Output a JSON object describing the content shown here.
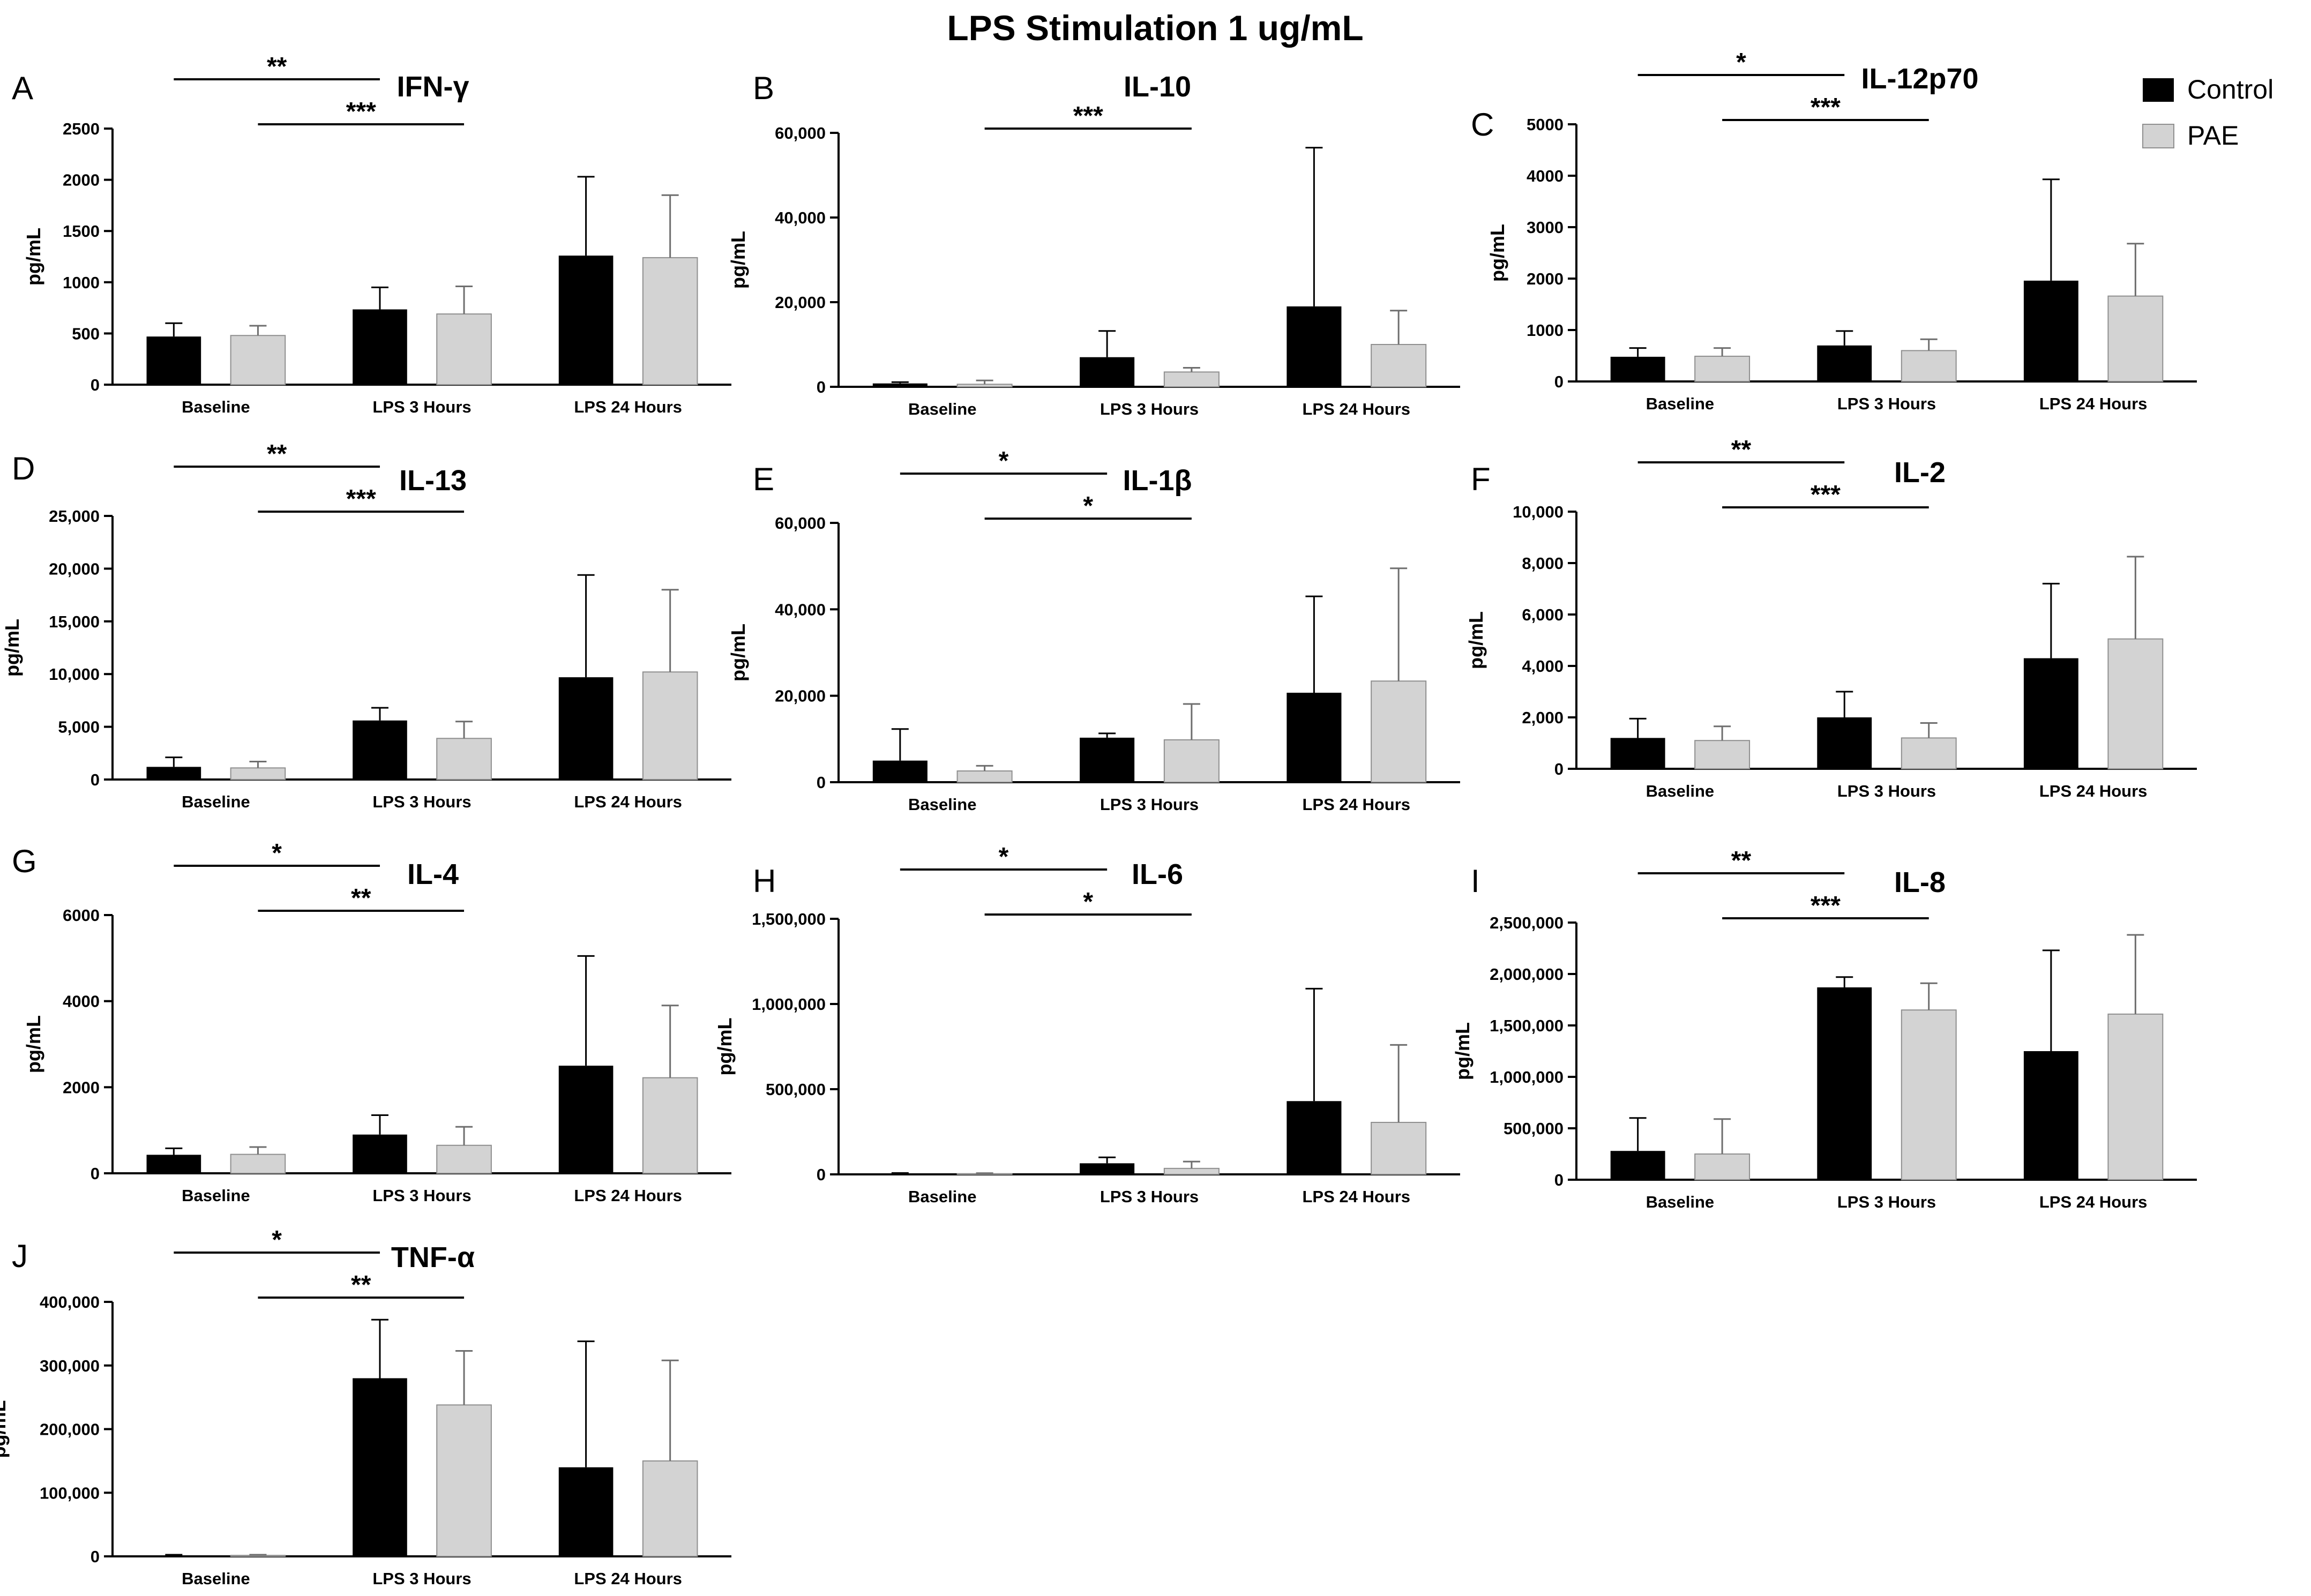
{
  "figure_title": "LPS Stimulation 1 ug/mL",
  "colors": {
    "control": "#000000",
    "pae": "#d3d3d3",
    "axis": "#000000",
    "pae_edge": "#8f8f8f"
  },
  "legend": {
    "placement": "top-right",
    "entries": [
      "Control",
      "PAE"
    ]
  },
  "chart_data": [
    {
      "panel": "A",
      "type": "bar",
      "title": "IFN-γ",
      "ylabel": "pg/mL",
      "categories": [
        "Baseline",
        "LPS 3 Hours",
        "LPS 24 Hours"
      ],
      "ylim": [
        0,
        2500
      ],
      "yticks": [
        0,
        500,
        1000,
        1500,
        2000,
        2500
      ],
      "ytick_labels": [
        "0",
        "500",
        "1000",
        "1500",
        "2000",
        "2500"
      ],
      "series": [
        {
          "name": "Control",
          "values": [
            470,
            735,
            1260
          ],
          "errors": [
            130,
            215,
            770
          ]
        },
        {
          "name": "PAE",
          "values": [
            480,
            690,
            1240
          ],
          "errors": [
            95,
            270,
            610
          ]
        }
      ],
      "significance": [
        {
          "label": "**",
          "from": 0,
          "to": 2,
          "level": 1
        },
        {
          "label": "***",
          "from": 1,
          "to": 3,
          "level": 0
        }
      ]
    },
    {
      "panel": "B",
      "type": "bar",
      "title": "IL-10",
      "ylabel": "pg/mL",
      "categories": [
        "Baseline",
        "LPS 3 Hours",
        "LPS 24 Hours"
      ],
      "ylim": [
        0,
        60000
      ],
      "yticks": [
        0,
        20000,
        40000,
        60000
      ],
      "ytick_labels": [
        "0",
        "20,000",
        "40,000",
        "60,000"
      ],
      "series": [
        {
          "name": "Control",
          "values": [
            800,
            7000,
            19000
          ],
          "errors": [
            300,
            6200,
            37500
          ]
        },
        {
          "name": "PAE",
          "values": [
            600,
            3500,
            10000
          ],
          "errors": [
            900,
            1000,
            8000
          ]
        }
      ],
      "significance": [
        {
          "label": "***",
          "from": 1,
          "to": 3,
          "level": 0
        }
      ]
    },
    {
      "panel": "C",
      "type": "bar",
      "title": "IL-12p70",
      "ylabel": "pg/mL",
      "categories": [
        "Baseline",
        "LPS 3 Hours",
        "LPS 24 Hours"
      ],
      "ylim": [
        0,
        5000
      ],
      "yticks": [
        0,
        1000,
        2000,
        3000,
        4000,
        5000
      ],
      "ytick_labels": [
        "0",
        "1000",
        "2000",
        "3000",
        "4000",
        "5000"
      ],
      "series": [
        {
          "name": "Control",
          "values": [
            480,
            700,
            1960
          ],
          "errors": [
            170,
            280,
            1970
          ]
        },
        {
          "name": "PAE",
          "values": [
            490,
            600,
            1660
          ],
          "errors": [
            160,
            220,
            1020
          ]
        }
      ],
      "significance": [
        {
          "label": "*",
          "from": 0,
          "to": 2,
          "level": 1
        },
        {
          "label": "***",
          "from": 1,
          "to": 3,
          "level": 0
        }
      ]
    },
    {
      "panel": "D",
      "type": "bar",
      "title": "IL-13",
      "ylabel": "pg/mL",
      "categories": [
        "Baseline",
        "LPS 3 Hours",
        "LPS 24 Hours"
      ],
      "ylim": [
        0,
        25000
      ],
      "yticks": [
        0,
        5000,
        10000,
        15000,
        20000,
        25000
      ],
      "ytick_labels": [
        "0",
        "5,000",
        "10,000",
        "15,000",
        "20,000",
        "25,000"
      ],
      "series": [
        {
          "name": "Control",
          "values": [
            1200,
            5600,
            9700
          ],
          "errors": [
            900,
            1200,
            9700
          ]
        },
        {
          "name": "PAE",
          "values": [
            1100,
            3900,
            10200
          ],
          "errors": [
            600,
            1600,
            7800
          ]
        }
      ],
      "significance": [
        {
          "label": "**",
          "from": 0,
          "to": 2,
          "level": 1
        },
        {
          "label": "***",
          "from": 1,
          "to": 3,
          "level": 0
        }
      ]
    },
    {
      "panel": "E",
      "type": "bar",
      "title": "IL-1β",
      "ylabel": "pg/mL",
      "categories": [
        "Baseline",
        "LPS 3 Hours",
        "LPS 24 Hours"
      ],
      "ylim": [
        0,
        60000
      ],
      "yticks": [
        0,
        20000,
        40000,
        60000
      ],
      "ytick_labels": [
        "0",
        "20,000",
        "40,000",
        "60,000"
      ],
      "series": [
        {
          "name": "Control",
          "values": [
            5000,
            10300,
            20700
          ],
          "errors": [
            7300,
            1000,
            22300
          ]
        },
        {
          "name": "PAE",
          "values": [
            2600,
            9800,
            23400
          ],
          "errors": [
            1200,
            8300,
            26100
          ]
        }
      ],
      "significance": [
        {
          "label": "*",
          "from": 0,
          "to": 2,
          "level": 1
        },
        {
          "label": "*",
          "from": 1,
          "to": 3,
          "level": 0
        }
      ]
    },
    {
      "panel": "F",
      "type": "bar",
      "title": "IL-2",
      "ylabel": "pg/mL",
      "categories": [
        "Baseline",
        "LPS 3 Hours",
        "LPS 24 Hours"
      ],
      "ylim": [
        0,
        10000
      ],
      "yticks": [
        0,
        2000,
        4000,
        6000,
        8000,
        10000
      ],
      "ytick_labels": [
        "0",
        "2,000",
        "4,000",
        "6,000",
        "8,000",
        "10,000"
      ],
      "series": [
        {
          "name": "Control",
          "values": [
            1200,
            2000,
            4300
          ],
          "errors": [
            750,
            1000,
            2900
          ]
        },
        {
          "name": "PAE",
          "values": [
            1100,
            1200,
            5050
          ],
          "errors": [
            550,
            580,
            3200
          ]
        }
      ],
      "significance": [
        {
          "label": "**",
          "from": 0,
          "to": 2,
          "level": 1
        },
        {
          "label": "***",
          "from": 1,
          "to": 3,
          "level": 0
        }
      ]
    },
    {
      "panel": "G",
      "type": "bar",
      "title": "IL-4",
      "ylabel": "pg/mL",
      "categories": [
        "Baseline",
        "LPS 3 Hours",
        "LPS 24 Hours"
      ],
      "ylim": [
        0,
        6000
      ],
      "yticks": [
        0,
        2000,
        4000,
        6000
      ],
      "ytick_labels": [
        "0",
        "2000",
        "4000",
        "6000"
      ],
      "series": [
        {
          "name": "Control",
          "values": [
            430,
            900,
            2500
          ],
          "errors": [
            150,
            450,
            2550
          ]
        },
        {
          "name": "PAE",
          "values": [
            440,
            650,
            2220
          ],
          "errors": [
            170,
            430,
            1680
          ]
        }
      ],
      "significance": [
        {
          "label": "*",
          "from": 0,
          "to": 2,
          "level": 1
        },
        {
          "label": "**",
          "from": 1,
          "to": 3,
          "level": 0
        }
      ]
    },
    {
      "panel": "H",
      "type": "bar",
      "title": "IL-6",
      "ylabel": "pg/mL",
      "categories": [
        "Baseline",
        "LPS 3 Hours",
        "LPS 24 Hours"
      ],
      "ylim": [
        0,
        1500000
      ],
      "yticks": [
        0,
        500000,
        1000000,
        1500000
      ],
      "ytick_labels": [
        "0",
        "500,000",
        "1,000,000",
        "1,500,000"
      ],
      "series": [
        {
          "name": "Control",
          "values": [
            5000,
            65000,
            430000
          ],
          "errors": [
            3000,
            35000,
            660000
          ]
        },
        {
          "name": "PAE",
          "values": [
            4000,
            35000,
            305000
          ],
          "errors": [
            3000,
            40000,
            455000
          ]
        }
      ],
      "significance": [
        {
          "label": "*",
          "from": 0,
          "to": 2,
          "level": 1
        },
        {
          "label": "*",
          "from": 1,
          "to": 3,
          "level": 0
        }
      ]
    },
    {
      "panel": "I",
      "type": "bar",
      "title": "IL-8",
      "ylabel": "pg/mL",
      "categories": [
        "Baseline",
        "LPS 3 Hours",
        "LPS 24 Hours"
      ],
      "ylim": [
        0,
        2500000
      ],
      "yticks": [
        0,
        500000,
        1000000,
        1500000,
        2000000,
        2500000
      ],
      "ytick_labels": [
        "0",
        "500,000",
        "1,000,000",
        "1,500,000",
        "2,000,000",
        "2,500,000"
      ],
      "series": [
        {
          "name": "Control",
          "values": [
            280000,
            1870000,
            1250000
          ],
          "errors": [
            320000,
            100000,
            980000
          ]
        },
        {
          "name": "PAE",
          "values": [
            250000,
            1650000,
            1610000
          ],
          "errors": [
            340000,
            260000,
            770000
          ]
        }
      ],
      "significance": [
        {
          "label": "**",
          "from": 0,
          "to": 2,
          "level": 1
        },
        {
          "label": "***",
          "from": 1,
          "to": 3,
          "level": 0
        }
      ]
    },
    {
      "panel": "J",
      "type": "bar",
      "title": "TNF-α",
      "ylabel": "pg/mL",
      "categories": [
        "Baseline",
        "LPS 3 Hours",
        "LPS 24 Hours"
      ],
      "ylim": [
        0,
        400000
      ],
      "yticks": [
        0,
        100000,
        200000,
        300000,
        400000
      ],
      "ytick_labels": [
        "0",
        "100,000",
        "200,000",
        "300,000",
        "400,000"
      ],
      "series": [
        {
          "name": "Control",
          "values": [
            1500,
            280000,
            140000
          ],
          "errors": [
            1000,
            92000,
            198000
          ]
        },
        {
          "name": "PAE",
          "values": [
            1500,
            238000,
            150000
          ],
          "errors": [
            1000,
            85000,
            158000
          ]
        }
      ],
      "significance": [
        {
          "label": "*",
          "from": 0,
          "to": 2,
          "level": 1
        },
        {
          "label": "**",
          "from": 1,
          "to": 3,
          "level": 0
        }
      ]
    }
  ]
}
